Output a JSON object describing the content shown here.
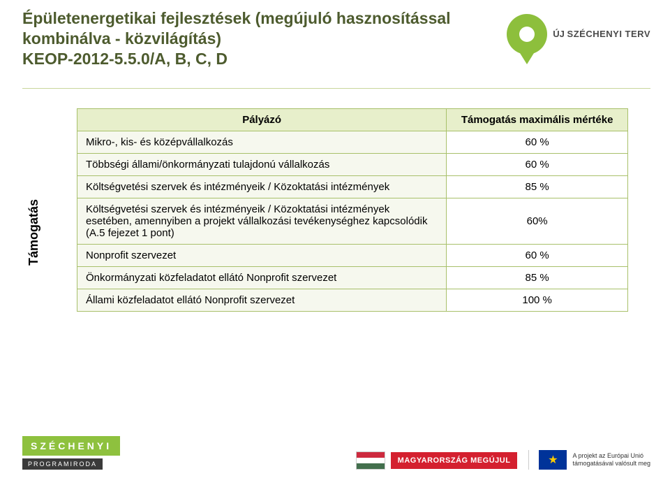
{
  "title": "Épületenergetikai fejlesztések (megújuló hasznosítással kombinálva - közvilágítás)\nKEOP-2012-5.5.0/A, B, C, D",
  "logo_top": {
    "line1": "ÚJ",
    "line2": "SZÉCHENYI TERV"
  },
  "sidebar_label": "Támogatás",
  "table": {
    "header_left": "Pályázó",
    "header_right": "Támogatás maximális mértéke",
    "rows": [
      {
        "label": "Mikro-, kis- és középvállalkozás",
        "value": "60 %"
      },
      {
        "label": "Többségi állami/önkormányzati tulajdonú vállalkozás",
        "value": "60 %"
      },
      {
        "label": "Költségvetési szervek és intézményeik / Közoktatási intézmények",
        "value": "85 %"
      },
      {
        "label": "Költségvetési szervek és intézményeik / Közoktatási intézmények esetében, amennyiben a projekt vállalkozási tevékenységhez kapcsolódik  (A.5 fejezet 1 pont)",
        "value": "60%"
      },
      {
        "label": "Nonprofit szervezet",
        "value": "60 %"
      },
      {
        "label": "Önkormányzati közfeladatot ellátó Nonprofit szervezet",
        "value": "85 %"
      },
      {
        "label": "Állami közfeladatot ellátó Nonprofit szervezet",
        "value": "100 %"
      }
    ],
    "colors": {
      "border": "#a8c06a",
      "header_bg": "#e7efcb",
      "row_bg": "#f6f8ee"
    }
  },
  "footer": {
    "szechenyi": "SZÉCHENYI",
    "programiroda": "PROGRAMIRODA",
    "mm": "MAGYARORSZÁG MEGÚJUL",
    "eu_line1": "A projekt az Európai Unió",
    "eu_line2": "támogatásával valósult meg"
  }
}
